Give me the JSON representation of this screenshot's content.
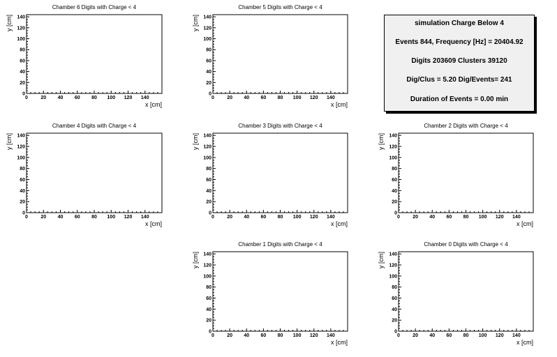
{
  "stats": {
    "title": "simulation Charge Below 4",
    "line1": "Events 844, Frequency [Hz] = 20404.92",
    "line2": "Digits 203609 Clusters 39120",
    "line3": "Dig/Clus = 5.20 Dig/Events= 241",
    "line4": "Duration of Events = 0.00 min"
  },
  "chart_data": [
    {
      "type": "scatter",
      "title": "Chamber 6 Digits with Charge < 4",
      "xlabel": "x [cm]",
      "ylabel": "y [cm]",
      "xlim": [
        0,
        160
      ],
      "ylim": [
        0,
        144
      ],
      "xticks": [
        0,
        20,
        40,
        60,
        80,
        100,
        120,
        140
      ],
      "yticks": [
        0,
        20,
        40,
        60,
        80,
        100,
        120,
        140
      ],
      "points": []
    },
    {
      "type": "scatter",
      "title": "Chamber 5 Digits with Charge < 4",
      "xlabel": "x [cm]",
      "ylabel": "y [cm]",
      "xlim": [
        0,
        160
      ],
      "ylim": [
        0,
        144
      ],
      "xticks": [
        0,
        20,
        40,
        60,
        80,
        100,
        120,
        140
      ],
      "yticks": [
        0,
        20,
        40,
        60,
        80,
        100,
        120,
        140
      ],
      "points": []
    },
    {
      "type": "scatter",
      "title": "Chamber 4 Digits with Charge < 4",
      "xlabel": "x [cm]",
      "ylabel": "y [cm]",
      "xlim": [
        0,
        160
      ],
      "ylim": [
        0,
        144
      ],
      "xticks": [
        0,
        20,
        40,
        60,
        80,
        100,
        120,
        140
      ],
      "yticks": [
        0,
        20,
        40,
        60,
        80,
        100,
        120,
        140
      ],
      "points": []
    },
    {
      "type": "scatter",
      "title": "Chamber 3 Digits with Charge < 4",
      "xlabel": "x [cm]",
      "ylabel": "y [cm]",
      "xlim": [
        0,
        160
      ],
      "ylim": [
        0,
        144
      ],
      "xticks": [
        0,
        20,
        40,
        60,
        80,
        100,
        120,
        140
      ],
      "yticks": [
        0,
        20,
        40,
        60,
        80,
        100,
        120,
        140
      ],
      "points": []
    },
    {
      "type": "scatter",
      "title": "Chamber 2 Digits with Charge < 4",
      "xlabel": "x [cm]",
      "ylabel": "y [cm]",
      "xlim": [
        0,
        160
      ],
      "ylim": [
        0,
        144
      ],
      "xticks": [
        0,
        20,
        40,
        60,
        80,
        100,
        120,
        140
      ],
      "yticks": [
        0,
        20,
        40,
        60,
        80,
        100,
        120,
        140
      ],
      "points": []
    },
    {
      "type": "scatter",
      "title": "Chamber 1 Digits with Charge < 4",
      "xlabel": "x [cm]",
      "ylabel": "y [cm]",
      "xlim": [
        0,
        160
      ],
      "ylim": [
        0,
        144
      ],
      "xticks": [
        0,
        20,
        40,
        60,
        80,
        100,
        120,
        140
      ],
      "yticks": [
        0,
        20,
        40,
        60,
        80,
        100,
        120,
        140
      ],
      "points": []
    },
    {
      "type": "scatter",
      "title": "Chamber 0 Digits with Charge < 4",
      "xlabel": "x [cm]",
      "ylabel": "y [cm]",
      "xlim": [
        0,
        160
      ],
      "ylim": [
        0,
        144
      ],
      "xticks": [
        0,
        20,
        40,
        60,
        80,
        100,
        120,
        140
      ],
      "yticks": [
        0,
        20,
        40,
        60,
        80,
        100,
        120,
        140
      ],
      "points": []
    }
  ]
}
